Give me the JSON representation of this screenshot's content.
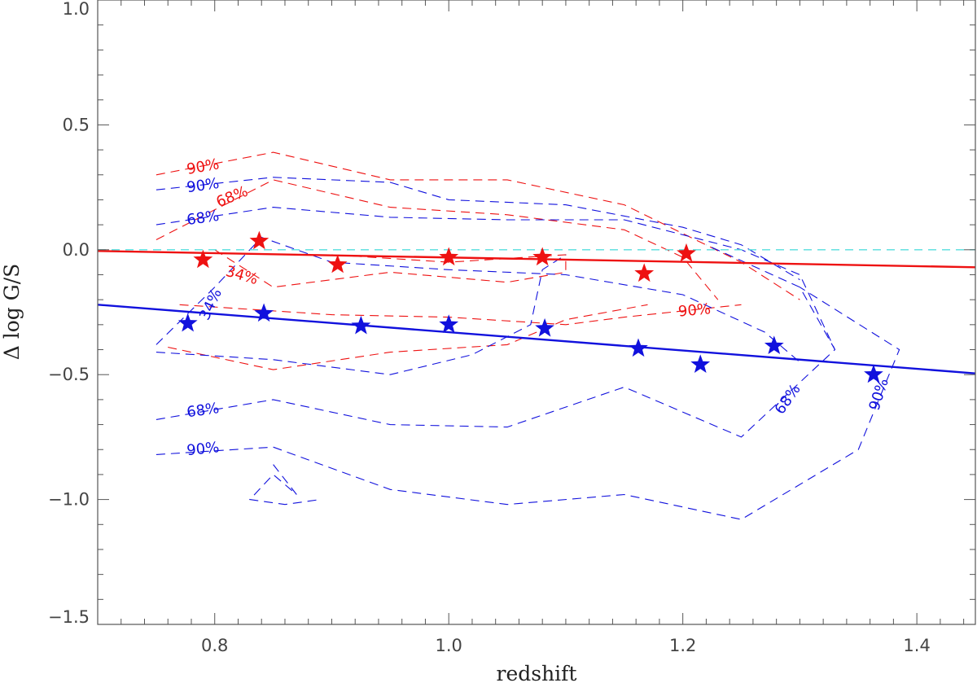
{
  "chart_data": {
    "type": "scatter",
    "title": "",
    "xlabel": "redshift",
    "ylabel": "Δ log G/S",
    "xlim": [
      0.7,
      1.45
    ],
    "ylim": [
      -1.5,
      1.0
    ],
    "x_ticks": [
      {
        "value": 0.8,
        "label": "0.8"
      },
      {
        "value": 1.0,
        "label": "1.0"
      },
      {
        "value": 1.2,
        "label": "1.2"
      },
      {
        "value": 1.4,
        "label": "1.4"
      }
    ],
    "y_ticks": [
      {
        "value": 1.0,
        "label": "1.0"
      },
      {
        "value": 0.5,
        "label": "0.5"
      },
      {
        "value": 0.0,
        "label": "0.0"
      },
      {
        "value": -0.5,
        "label": "−0.5"
      },
      {
        "value": -1.0,
        "label": "−1.0"
      },
      {
        "value": -1.5,
        "label": "−1.5"
      }
    ],
    "reference_line": {
      "y": 0.0,
      "color": "#55dede"
    },
    "series": [
      {
        "name": "red",
        "color": "#ee1111",
        "points": [
          {
            "x": 0.79,
            "y": -0.04
          },
          {
            "x": 0.838,
            "y": 0.035
          },
          {
            "x": 0.905,
            "y": -0.06
          },
          {
            "x": 1.0,
            "y": -0.03
          },
          {
            "x": 1.08,
            "y": -0.03
          },
          {
            "x": 1.167,
            "y": -0.095
          },
          {
            "x": 1.203,
            "y": -0.015
          }
        ],
        "fit": {
          "x": [
            0.7,
            1.45
          ],
          "y": [
            -0.005,
            -0.07
          ]
        }
      },
      {
        "name": "blue",
        "color": "#1111dd",
        "points": [
          {
            "x": 0.777,
            "y": -0.295
          },
          {
            "x": 0.842,
            "y": -0.255
          },
          {
            "x": 0.925,
            "y": -0.305
          },
          {
            "x": 1.0,
            "y": -0.3
          },
          {
            "x": 1.082,
            "y": -0.315
          },
          {
            "x": 1.162,
            "y": -0.395
          },
          {
            "x": 1.215,
            "y": -0.46
          },
          {
            "x": 1.278,
            "y": -0.385
          },
          {
            "x": 1.363,
            "y": -0.5
          }
        ],
        "fit": {
          "x": [
            0.7,
            1.45
          ],
          "y": [
            -0.22,
            -0.495
          ]
        }
      }
    ],
    "contours": [
      {
        "series": "red",
        "pts": [
          [
            0.75,
            0.3
          ],
          [
            0.85,
            0.39
          ],
          [
            0.95,
            0.28
          ],
          [
            1.05,
            0.28
          ],
          [
            1.15,
            0.18
          ],
          [
            1.25,
            -0.05
          ],
          [
            1.3,
            -0.2
          ]
        ]
      },
      {
        "series": "red",
        "pts": [
          [
            0.75,
            0.04
          ],
          [
            0.85,
            0.28
          ],
          [
            0.95,
            0.17
          ],
          [
            1.05,
            0.14
          ],
          [
            1.15,
            0.08
          ],
          [
            1.2,
            -0.03
          ],
          [
            1.23,
            -0.2
          ]
        ]
      },
      {
        "series": "red",
        "pts": [
          [
            0.8,
            0.0
          ],
          [
            0.85,
            -0.15
          ],
          [
            0.95,
            -0.09
          ],
          [
            1.05,
            -0.13
          ],
          [
            1.1,
            -0.09
          ],
          [
            1.1,
            -0.02
          ],
          [
            1.0,
            -0.05
          ],
          [
            0.9,
            -0.02
          ]
        ]
      },
      {
        "series": "red",
        "pts": [
          [
            0.77,
            -0.22
          ],
          [
            0.9,
            -0.26
          ],
          [
            1.0,
            -0.27
          ],
          [
            1.1,
            -0.3
          ],
          [
            1.15,
            -0.27
          ],
          [
            1.25,
            -0.22
          ]
        ]
      },
      {
        "series": "red",
        "pts": [
          [
            0.76,
            -0.39
          ],
          [
            0.85,
            -0.48
          ],
          [
            0.95,
            -0.41
          ],
          [
            1.05,
            -0.38
          ],
          [
            1.1,
            -0.28
          ],
          [
            1.17,
            -0.22
          ]
        ]
      },
      {
        "series": "blue",
        "pts": [
          [
            0.75,
            0.24
          ],
          [
            0.85,
            0.29
          ],
          [
            0.95,
            0.27
          ],
          [
            1.0,
            0.2
          ],
          [
            1.1,
            0.18
          ],
          [
            1.2,
            0.09
          ],
          [
            1.25,
            0.02
          ],
          [
            1.3,
            -0.12
          ]
        ]
      },
      {
        "series": "blue",
        "pts": [
          [
            0.75,
            0.1
          ],
          [
            0.85,
            0.17
          ],
          [
            0.95,
            0.13
          ],
          [
            1.05,
            0.12
          ],
          [
            1.15,
            0.12
          ],
          [
            1.25,
            0.0
          ],
          [
            1.3,
            -0.1
          ],
          [
            1.33,
            -0.4
          ]
        ]
      },
      {
        "series": "blue",
        "pts": [
          [
            0.75,
            -0.38
          ],
          [
            0.8,
            -0.15
          ],
          [
            0.84,
            0.05
          ],
          [
            0.9,
            -0.05
          ],
          [
            1.0,
            -0.08
          ],
          [
            1.1,
            -0.1
          ],
          [
            1.2,
            -0.18
          ],
          [
            1.27,
            -0.33
          ],
          [
            1.3,
            -0.45
          ]
        ]
      },
      {
        "series": "blue",
        "pts": [
          [
            0.75,
            -0.41
          ],
          [
            0.85,
            -0.44
          ],
          [
            0.95,
            -0.5
          ],
          [
            1.02,
            -0.42
          ],
          [
            1.07,
            -0.3
          ],
          [
            1.08,
            -0.08
          ],
          [
            1.1,
            -0.02
          ]
        ]
      },
      {
        "series": "blue",
        "pts": [
          [
            0.75,
            -0.68
          ],
          [
            0.85,
            -0.6
          ],
          [
            0.95,
            -0.7
          ],
          [
            1.05,
            -0.71
          ],
          [
            1.15,
            -0.55
          ],
          [
            1.25,
            -0.75
          ],
          [
            1.33,
            -0.4
          ],
          [
            1.3,
            -0.15
          ],
          [
            1.22,
            0.02
          ]
        ]
      },
      {
        "series": "blue",
        "pts": [
          [
            0.75,
            -0.82
          ],
          [
            0.85,
            -0.79
          ],
          [
            0.95,
            -0.96
          ],
          [
            1.05,
            -1.02
          ],
          [
            1.15,
            -0.98
          ],
          [
            1.25,
            -1.08
          ],
          [
            1.35,
            -0.8
          ],
          [
            1.385,
            -0.4
          ],
          [
            1.3,
            -0.15
          ]
        ]
      },
      {
        "series": "blue",
        "pts": [
          [
            0.85,
            -0.86
          ],
          [
            0.87,
            -0.98
          ],
          [
            0.85,
            -0.9
          ],
          [
            0.83,
            -1.0
          ],
          [
            0.86,
            -1.02
          ],
          [
            0.89,
            -1.0
          ]
        ]
      }
    ],
    "contour_labels": [
      {
        "series": "red",
        "text": "90%",
        "x": 0.79,
        "y": 0.33,
        "rotate": -10
      },
      {
        "series": "red",
        "text": "68%",
        "x": 0.815,
        "y": 0.21,
        "rotate": -22
      },
      {
        "series": "red",
        "text": "34%",
        "x": 0.823,
        "y": -0.105,
        "rotate": 16
      },
      {
        "series": "red",
        "text": "90%",
        "x": 1.21,
        "y": -0.245,
        "rotate": -5
      },
      {
        "series": "blue",
        "text": "90%",
        "x": 0.79,
        "y": 0.255,
        "rotate": -8
      },
      {
        "series": "blue",
        "text": "68%",
        "x": 0.79,
        "y": 0.125,
        "rotate": -8
      },
      {
        "series": "blue",
        "text": "34%",
        "x": 0.797,
        "y": -0.22,
        "rotate": -65
      },
      {
        "series": "blue",
        "text": "68%",
        "x": 0.79,
        "y": -0.645,
        "rotate": -8
      },
      {
        "series": "blue",
        "text": "90%",
        "x": 0.79,
        "y": -0.8,
        "rotate": -6
      },
      {
        "series": "blue",
        "text": "68%",
        "x": 1.29,
        "y": -0.6,
        "rotate": -55
      },
      {
        "series": "blue",
        "text": "90%",
        "x": 1.368,
        "y": -0.58,
        "rotate": -72
      }
    ]
  }
}
